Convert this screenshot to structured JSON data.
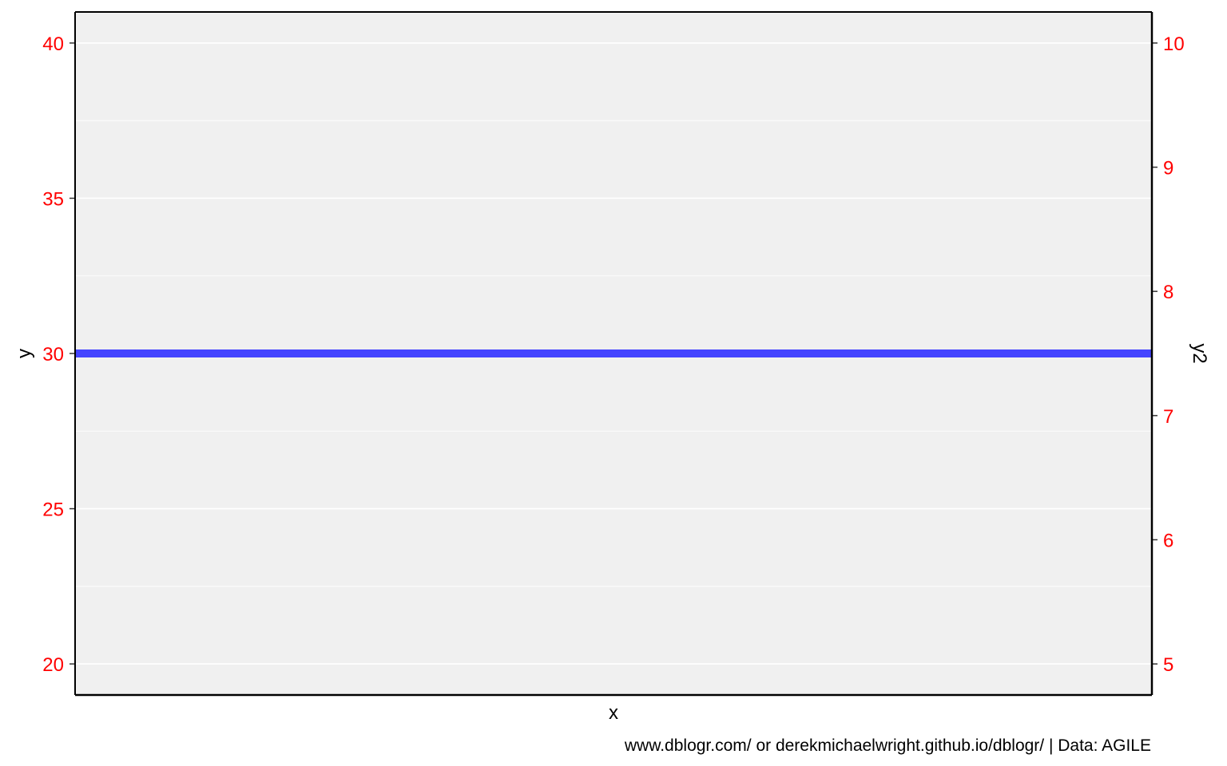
{
  "chart_data": {
    "type": "line",
    "title": "",
    "xlabel": "x",
    "ylabel": "y",
    "y2label": "y2",
    "ylim": [
      19,
      41
    ],
    "y2lim": [
      4.75,
      10.25
    ],
    "yticks": [
      20,
      25,
      30,
      35,
      40
    ],
    "y2ticks": [
      5,
      6,
      7,
      8,
      9,
      10
    ],
    "series": [
      {
        "values": [
          30,
          30
        ],
        "color": "#4444ff"
      }
    ],
    "grid": true,
    "caption": "www.dblogr.com/ or derekmichaelwright.github.io/dblogr/ | Data: AGILE",
    "colors": {
      "panel_background": "#f0f0f0",
      "grid": "#ffffff",
      "tick_label": "#ff0000",
      "line": "#4444ff"
    }
  }
}
